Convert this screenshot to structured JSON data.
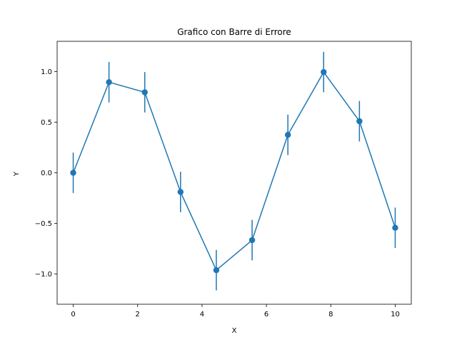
{
  "chart_data": {
    "type": "line",
    "title": "Grafico con Barre di Errore",
    "xlabel": "X",
    "ylabel": "Y",
    "xlim": [
      -0.5,
      10.5
    ],
    "ylim": [
      -1.3,
      1.3
    ],
    "xticks": [
      0,
      2,
      4,
      6,
      8,
      10
    ],
    "xtick_labels": [
      "0",
      "2",
      "4",
      "6",
      "8",
      "10"
    ],
    "yticks": [
      -1.0,
      -0.5,
      0.0,
      0.5,
      1.0
    ],
    "ytick_labels": [
      "−1.0",
      "−0.5",
      "0.0",
      "0.5",
      "1.0"
    ],
    "grid": false,
    "series": [
      {
        "x": [
          0,
          1.111,
          2.222,
          3.333,
          4.444,
          5.556,
          6.667,
          7.778,
          8.889,
          10
        ],
        "y": [
          0.0,
          0.896,
          0.796,
          -0.19,
          -0.963,
          -0.666,
          0.375,
          0.996,
          0.51,
          -0.544
        ],
        "yerr": [
          0.2,
          0.2,
          0.2,
          0.2,
          0.2,
          0.2,
          0.2,
          0.2,
          0.2,
          0.2
        ],
        "color": "#1f77b4",
        "marker": "circle"
      }
    ]
  }
}
